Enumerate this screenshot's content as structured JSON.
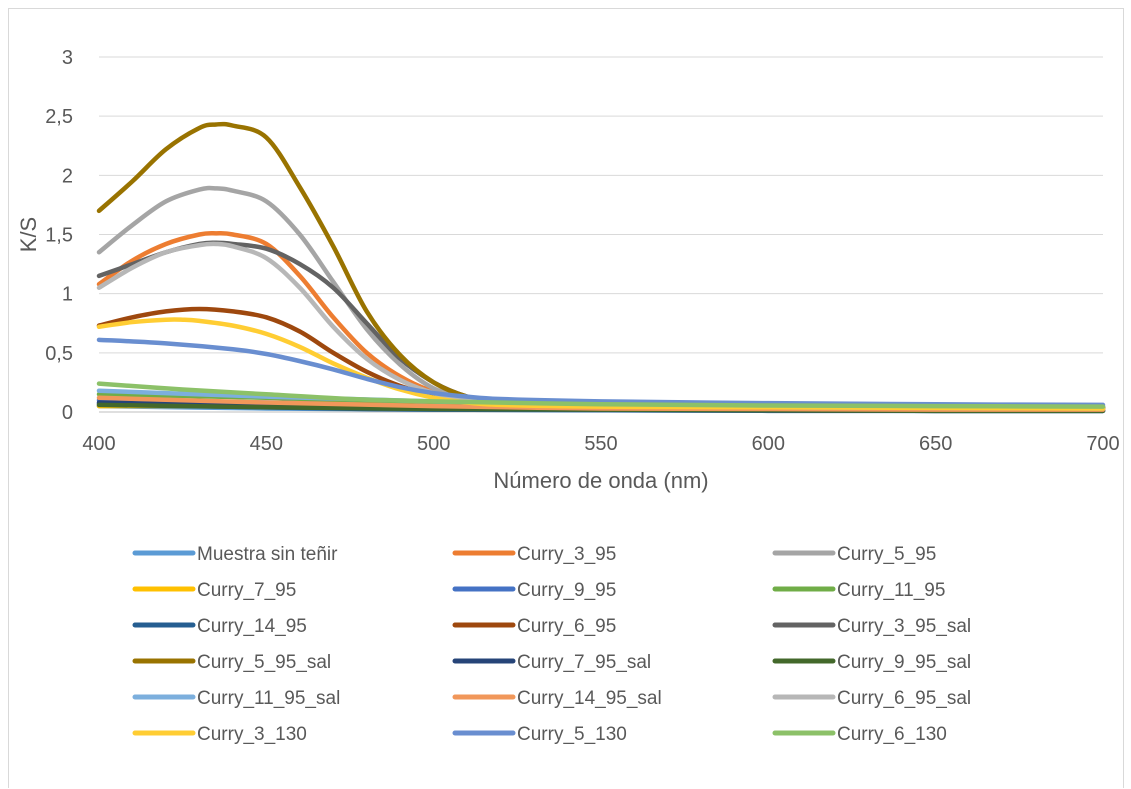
{
  "chart_data": {
    "type": "line",
    "title": "",
    "xlabel": "Número de onda (nm)",
    "ylabel": "K/S",
    "xlim": [
      400,
      700
    ],
    "ylim": [
      0,
      3
    ],
    "xticks": [
      400,
      450,
      500,
      550,
      600,
      650,
      700
    ],
    "xtick_labels": [
      "400",
      "450",
      "500",
      "550",
      "600",
      "650",
      "700"
    ],
    "yticks": [
      0,
      0.5,
      1,
      1.5,
      2,
      2.5,
      3
    ],
    "ytick_labels": [
      "0",
      "0,5",
      "1",
      "1,5",
      "2",
      "2,5",
      "3"
    ],
    "grid": "horizontal",
    "legend_position": "bottom",
    "series": [
      {
        "name": "Muestra sin teñir",
        "color": "#5B9BD5",
        "points": [
          [
            400,
            0.05
          ],
          [
            450,
            0.03
          ],
          [
            500,
            0.02
          ],
          [
            550,
            0.015
          ],
          [
            600,
            0.012
          ],
          [
            650,
            0.01
          ],
          [
            700,
            0.01
          ]
        ]
      },
      {
        "name": "Curry_3_95",
        "color": "#ED7D31",
        "points": [
          [
            400,
            1.08
          ],
          [
            410,
            1.28
          ],
          [
            420,
            1.42
          ],
          [
            430,
            1.5
          ],
          [
            435,
            1.51
          ],
          [
            440,
            1.5
          ],
          [
            450,
            1.42
          ],
          [
            460,
            1.15
          ],
          [
            470,
            0.8
          ],
          [
            480,
            0.5
          ],
          [
            490,
            0.3
          ],
          [
            500,
            0.17
          ],
          [
            510,
            0.1
          ],
          [
            520,
            0.07
          ],
          [
            550,
            0.05
          ],
          [
            600,
            0.04
          ],
          [
            650,
            0.035
          ],
          [
            700,
            0.03
          ]
        ]
      },
      {
        "name": "Curry_5_95",
        "color": "#A5A5A5",
        "points": [
          [
            400,
            1.35
          ],
          [
            410,
            1.58
          ],
          [
            420,
            1.78
          ],
          [
            430,
            1.88
          ],
          [
            435,
            1.89
          ],
          [
            440,
            1.87
          ],
          [
            450,
            1.78
          ],
          [
            460,
            1.5
          ],
          [
            470,
            1.1
          ],
          [
            480,
            0.7
          ],
          [
            490,
            0.4
          ],
          [
            500,
            0.2
          ],
          [
            510,
            0.12
          ],
          [
            520,
            0.08
          ],
          [
            550,
            0.05
          ],
          [
            600,
            0.045
          ],
          [
            650,
            0.04
          ],
          [
            700,
            0.035
          ]
        ]
      },
      {
        "name": "Curry_7_95",
        "color": "#FFC000",
        "points": [
          [
            400,
            0.05
          ],
          [
            450,
            0.05
          ],
          [
            500,
            0.04
          ],
          [
            550,
            0.03
          ],
          [
            600,
            0.03
          ],
          [
            650,
            0.025
          ],
          [
            700,
            0.02
          ]
        ]
      },
      {
        "name": "Curry_9_95",
        "color": "#4472C4",
        "points": [
          [
            400,
            0.1
          ],
          [
            450,
            0.08
          ],
          [
            500,
            0.06
          ],
          [
            550,
            0.05
          ],
          [
            600,
            0.045
          ],
          [
            650,
            0.04
          ],
          [
            700,
            0.04
          ]
        ]
      },
      {
        "name": "Curry_11_95",
        "color": "#70AD47",
        "points": [
          [
            400,
            0.15
          ],
          [
            450,
            0.12
          ],
          [
            500,
            0.08
          ],
          [
            550,
            0.06
          ],
          [
            600,
            0.05
          ],
          [
            650,
            0.045
          ],
          [
            700,
            0.04
          ]
        ]
      },
      {
        "name": "Curry_14_95",
        "color": "#255E91",
        "points": [
          [
            400,
            0.07
          ],
          [
            430,
            0.05
          ],
          [
            470,
            0.03
          ],
          [
            500,
            0.02
          ],
          [
            550,
            0.015
          ],
          [
            600,
            0.01
          ],
          [
            650,
            0.01
          ],
          [
            700,
            0.01
          ]
        ]
      },
      {
        "name": "Curry_6_95",
        "color": "#9E480E",
        "points": [
          [
            400,
            0.73
          ],
          [
            410,
            0.8
          ],
          [
            420,
            0.85
          ],
          [
            430,
            0.87
          ],
          [
            440,
            0.85
          ],
          [
            450,
            0.8
          ],
          [
            460,
            0.68
          ],
          [
            470,
            0.5
          ],
          [
            480,
            0.34
          ],
          [
            490,
            0.22
          ],
          [
            500,
            0.14
          ],
          [
            510,
            0.09
          ],
          [
            520,
            0.06
          ],
          [
            550,
            0.04
          ],
          [
            600,
            0.035
          ],
          [
            650,
            0.03
          ],
          [
            700,
            0.03
          ]
        ]
      },
      {
        "name": "Curry_3_95_sal",
        "color": "#636363",
        "points": [
          [
            400,
            1.15
          ],
          [
            410,
            1.25
          ],
          [
            420,
            1.35
          ],
          [
            430,
            1.42
          ],
          [
            435,
            1.43
          ],
          [
            440,
            1.42
          ],
          [
            450,
            1.38
          ],
          [
            460,
            1.25
          ],
          [
            470,
            1.05
          ],
          [
            480,
            0.75
          ],
          [
            490,
            0.45
          ],
          [
            500,
            0.25
          ],
          [
            510,
            0.13
          ],
          [
            520,
            0.08
          ],
          [
            550,
            0.05
          ],
          [
            600,
            0.04
          ],
          [
            650,
            0.035
          ],
          [
            700,
            0.03
          ]
        ]
      },
      {
        "name": "Curry_5_95_sal",
        "color": "#997300",
        "points": [
          [
            400,
            1.7
          ],
          [
            410,
            1.95
          ],
          [
            420,
            2.22
          ],
          [
            430,
            2.4
          ],
          [
            435,
            2.43
          ],
          [
            440,
            2.42
          ],
          [
            450,
            2.32
          ],
          [
            460,
            1.9
          ],
          [
            470,
            1.4
          ],
          [
            480,
            0.85
          ],
          [
            490,
            0.48
          ],
          [
            500,
            0.25
          ],
          [
            510,
            0.13
          ],
          [
            520,
            0.08
          ],
          [
            550,
            0.05
          ],
          [
            600,
            0.045
          ],
          [
            650,
            0.04
          ],
          [
            700,
            0.04
          ]
        ]
      },
      {
        "name": "Curry_7_95_sal",
        "color": "#264478",
        "points": [
          [
            400,
            0.08
          ],
          [
            450,
            0.05
          ],
          [
            500,
            0.03
          ],
          [
            550,
            0.02
          ],
          [
            600,
            0.015
          ],
          [
            650,
            0.01
          ],
          [
            700,
            0.01
          ]
        ]
      },
      {
        "name": "Curry_9_95_sal",
        "color": "#43682B",
        "points": [
          [
            400,
            0.06
          ],
          [
            450,
            0.04
          ],
          [
            500,
            0.025
          ],
          [
            550,
            0.02
          ],
          [
            600,
            0.015
          ],
          [
            650,
            0.01
          ],
          [
            700,
            0.01
          ]
        ]
      },
      {
        "name": "Curry_11_95_sal",
        "color": "#7CAFDD",
        "points": [
          [
            400,
            0.18
          ],
          [
            450,
            0.13
          ],
          [
            500,
            0.09
          ],
          [
            550,
            0.07
          ],
          [
            600,
            0.06
          ],
          [
            650,
            0.055
          ],
          [
            700,
            0.05
          ]
        ]
      },
      {
        "name": "Curry_14_95_sal",
        "color": "#F1975A",
        "points": [
          [
            400,
            0.12
          ],
          [
            450,
            0.08
          ],
          [
            500,
            0.05
          ],
          [
            550,
            0.03
          ],
          [
            600,
            0.025
          ],
          [
            650,
            0.02
          ],
          [
            700,
            0.02
          ]
        ]
      },
      {
        "name": "Curry_6_95_sal",
        "color": "#B7B7B7",
        "points": [
          [
            400,
            1.05
          ],
          [
            410,
            1.22
          ],
          [
            420,
            1.35
          ],
          [
            430,
            1.41
          ],
          [
            435,
            1.42
          ],
          [
            440,
            1.4
          ],
          [
            450,
            1.3
          ],
          [
            460,
            1.05
          ],
          [
            470,
            0.72
          ],
          [
            480,
            0.45
          ],
          [
            490,
            0.27
          ],
          [
            500,
            0.16
          ],
          [
            510,
            0.1
          ],
          [
            520,
            0.07
          ],
          [
            550,
            0.05
          ],
          [
            600,
            0.04
          ],
          [
            650,
            0.035
          ],
          [
            700,
            0.03
          ]
        ]
      },
      {
        "name": "Curry_3_130",
        "color": "#FFCD33",
        "points": [
          [
            400,
            0.72
          ],
          [
            410,
            0.76
          ],
          [
            420,
            0.78
          ],
          [
            425,
            0.78
          ],
          [
            430,
            0.77
          ],
          [
            440,
            0.73
          ],
          [
            450,
            0.66
          ],
          [
            460,
            0.55
          ],
          [
            470,
            0.41
          ],
          [
            480,
            0.29
          ],
          [
            490,
            0.19
          ],
          [
            500,
            0.12
          ],
          [
            510,
            0.08
          ],
          [
            520,
            0.06
          ],
          [
            550,
            0.045
          ],
          [
            600,
            0.04
          ],
          [
            650,
            0.035
          ],
          [
            700,
            0.03
          ]
        ]
      },
      {
        "name": "Curry_5_130",
        "color": "#698ED0",
        "points": [
          [
            400,
            0.61
          ],
          [
            420,
            0.58
          ],
          [
            440,
            0.53
          ],
          [
            450,
            0.49
          ],
          [
            460,
            0.43
          ],
          [
            470,
            0.36
          ],
          [
            480,
            0.28
          ],
          [
            490,
            0.21
          ],
          [
            500,
            0.16
          ],
          [
            510,
            0.13
          ],
          [
            520,
            0.11
          ],
          [
            550,
            0.09
          ],
          [
            600,
            0.075
          ],
          [
            650,
            0.065
          ],
          [
            700,
            0.06
          ]
        ]
      },
      {
        "name": "Curry_6_130",
        "color": "#8CC168",
        "points": [
          [
            400,
            0.24
          ],
          [
            425,
            0.19
          ],
          [
            450,
            0.15
          ],
          [
            475,
            0.11
          ],
          [
            500,
            0.09
          ],
          [
            550,
            0.065
          ],
          [
            600,
            0.055
          ],
          [
            650,
            0.05
          ],
          [
            700,
            0.045
          ]
        ]
      }
    ]
  }
}
